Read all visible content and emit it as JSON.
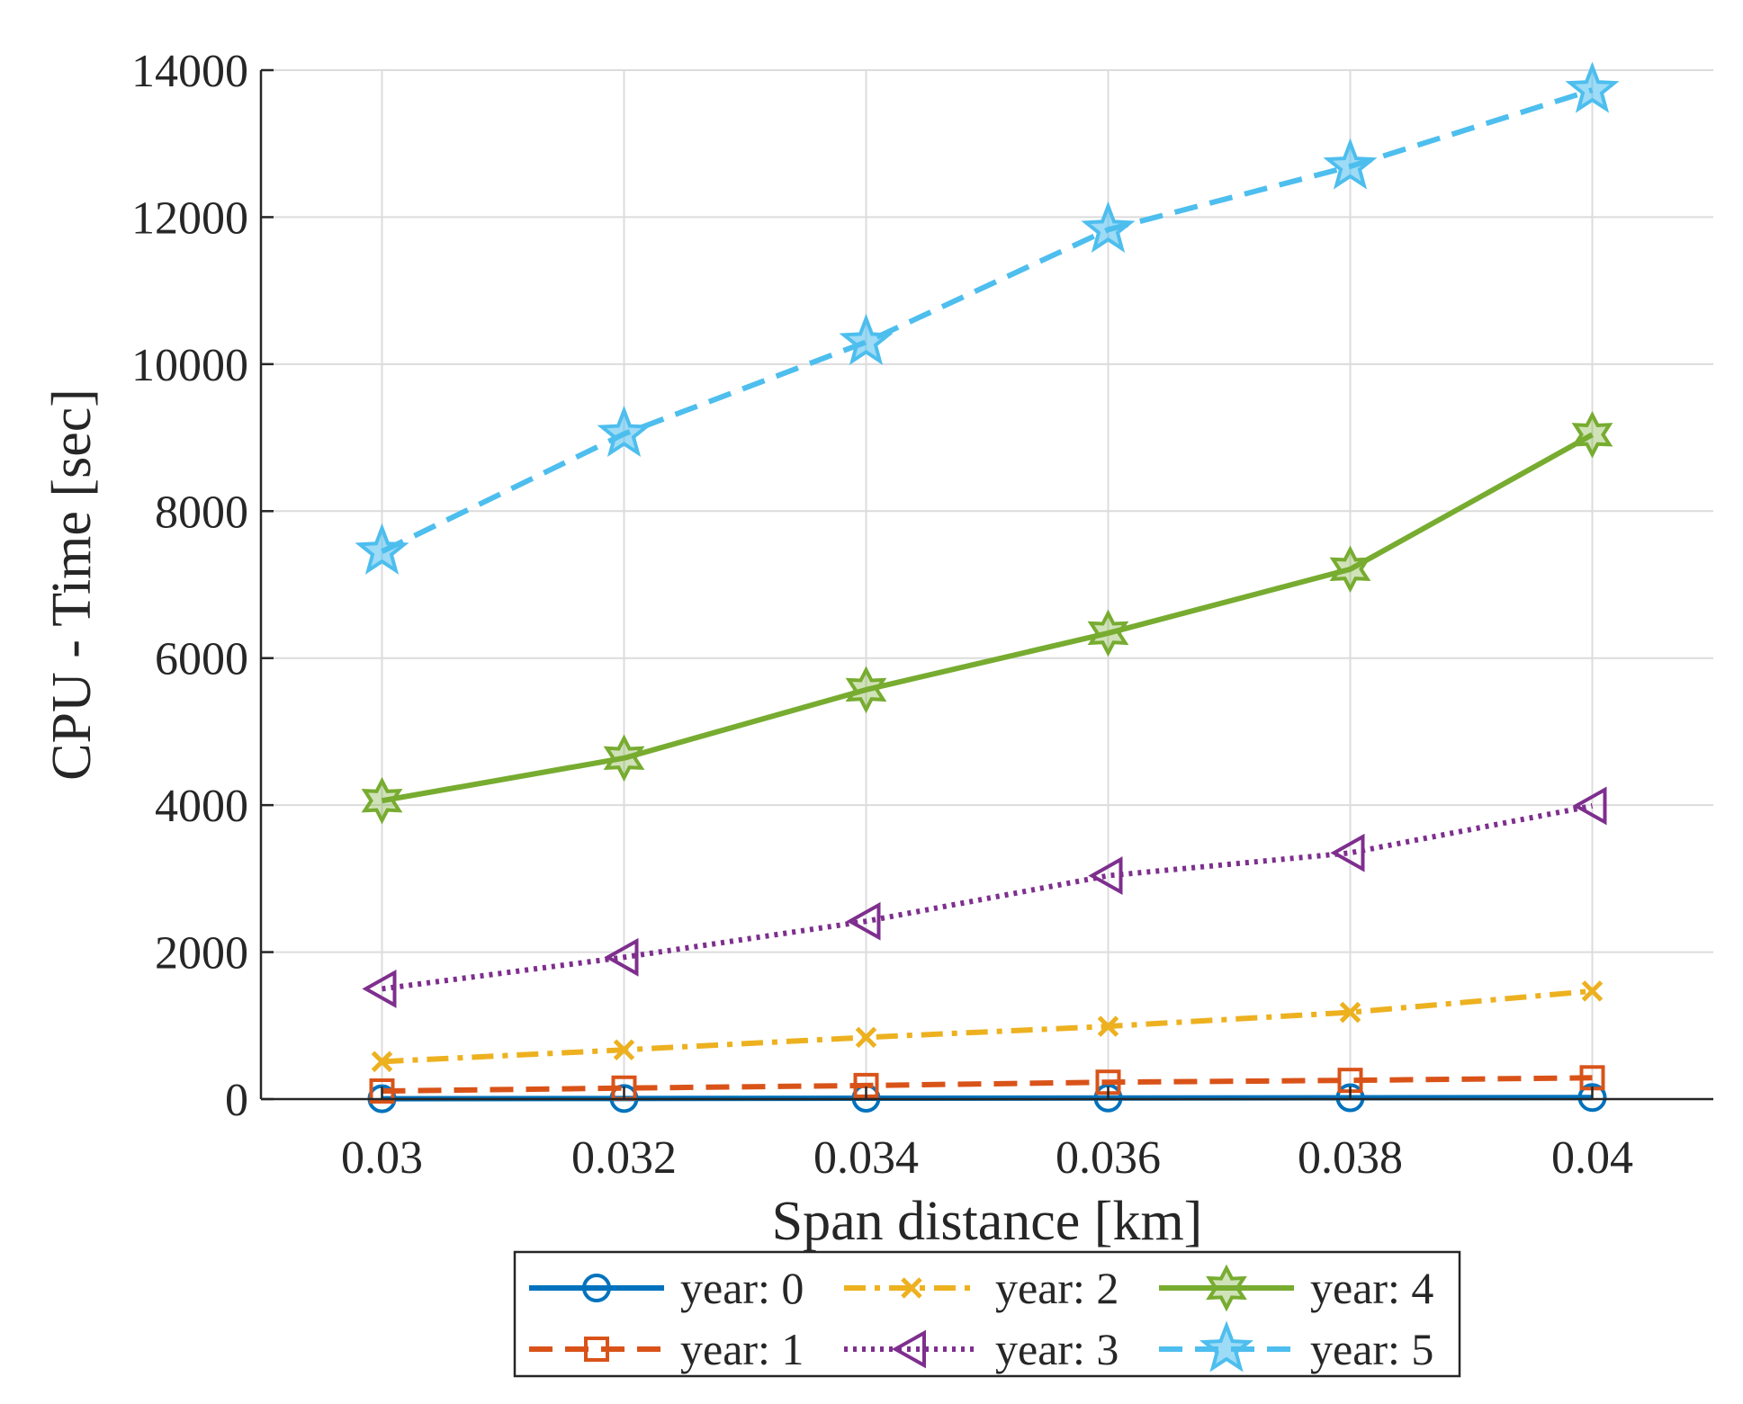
{
  "chart_data": {
    "type": "line",
    "title": "",
    "xlabel": "Span distance [km]",
    "ylabel": "CPU - Time [sec]",
    "x": [
      0.03,
      0.032,
      0.034,
      0.036,
      0.038,
      0.04
    ],
    "x_tick_labels": [
      "0.03",
      "0.032",
      "0.034",
      "0.036",
      "0.038",
      "0.04"
    ],
    "y_ticks": [
      0,
      2000,
      4000,
      6000,
      8000,
      10000,
      12000,
      14000
    ],
    "y_tick_labels": [
      "0",
      "2000",
      "4000",
      "6000",
      "8000",
      "10000",
      "12000",
      "14000"
    ],
    "xlim": [
      0.029,
      0.041
    ],
    "ylim": [
      0,
      14000
    ],
    "grid": true,
    "legend_position": "bottom-outside",
    "series": [
      {
        "name": "year: 0",
        "color": "#0072BD",
        "dash": "solid",
        "marker": "circle",
        "values": [
          5,
          8,
          12,
          15,
          18,
          22
        ]
      },
      {
        "name": "year: 1",
        "color": "#D95319",
        "dash": "dashed",
        "marker": "square",
        "values": [
          110,
          150,
          185,
          230,
          255,
          290
        ]
      },
      {
        "name": "year: 2",
        "color": "#EDB120",
        "dash": "dashdot",
        "marker": "x",
        "values": [
          510,
          670,
          840,
          990,
          1180,
          1470
        ]
      },
      {
        "name": "year: 3",
        "color": "#7E2F8E",
        "dash": "dotted",
        "marker": "triangle-left",
        "values": [
          1500,
          1930,
          2420,
          3040,
          3350,
          3990
        ]
      },
      {
        "name": "year: 4",
        "color": "#77AC30",
        "dash": "solid",
        "marker": "hexagram",
        "values": [
          4060,
          4640,
          5570,
          6340,
          7210,
          9040
        ]
      },
      {
        "name": "year: 5",
        "color": "#4DBEEE",
        "dash": "dashed",
        "marker": "pentagram",
        "values": [
          7450,
          9050,
          10300,
          11830,
          12690,
          13730
        ]
      }
    ]
  }
}
